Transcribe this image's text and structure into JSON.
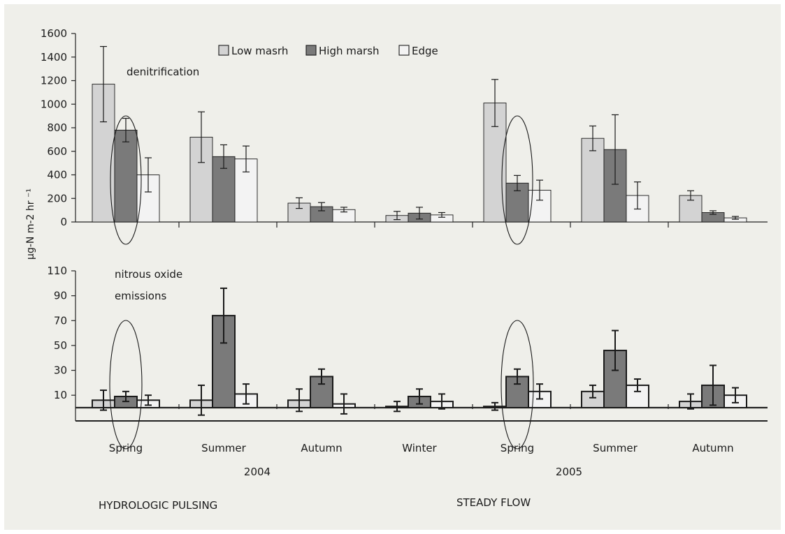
{
  "legend": {
    "items": [
      {
        "label": "Low masrh",
        "color": "#d3d3d3"
      },
      {
        "label": "High marsh",
        "color": "#7a7a7a"
      },
      {
        "label": "Edge",
        "color": "#f3f3f3"
      }
    ]
  },
  "y_axis_label": "µg-N m-2 hr ⁻¹",
  "seasons": [
    "Spring",
    "Summer",
    "Autumn",
    "Winter",
    "Spring",
    "Summer",
    "Autumn"
  ],
  "years": [
    "2004",
    "2005"
  ],
  "regimes": [
    "HYDROLOGIC PULSING",
    "STEADY FLOW"
  ],
  "chart_data": [
    {
      "type": "bar",
      "annotation": "denitrification",
      "categories": [
        "Spring",
        "Summer",
        "Autumn",
        "Winter",
        "Spring",
        "Summer",
        "Autumn"
      ],
      "ylim": [
        0,
        1600
      ],
      "yticks": [
        0,
        200,
        400,
        600,
        800,
        1000,
        1200,
        1400,
        1600
      ],
      "series": [
        {
          "name": "Low masrh",
          "values": [
            1170,
            720,
            160,
            55,
            1010,
            710,
            225
          ],
          "errors": [
            320,
            215,
            45,
            35,
            200,
            105,
            40
          ]
        },
        {
          "name": "High marsh",
          "values": [
            780,
            555,
            130,
            75,
            330,
            615,
            80
          ],
          "errors": [
            100,
            100,
            35,
            50,
            65,
            295,
            15
          ]
        },
        {
          "name": "Edge",
          "values": [
            400,
            535,
            105,
            60,
            270,
            225,
            35
          ],
          "errors": [
            145,
            110,
            20,
            20,
            85,
            115,
            12
          ]
        }
      ],
      "circled": [
        [
          0,
          1
        ],
        [
          4,
          1
        ]
      ]
    },
    {
      "type": "bar",
      "annotation_lines": [
        "nitrous oxide",
        "emissions"
      ],
      "categories": [
        "Spring",
        "Summer",
        "Autumn",
        "Winter",
        "Spring",
        "Summer",
        "Autumn"
      ],
      "ylim": [
        0,
        110
      ],
      "yticks": [
        10,
        30,
        50,
        70,
        90,
        110
      ],
      "series": [
        {
          "name": "Low masrh",
          "values": [
            6,
            6,
            6,
            1,
            1,
            13,
            5
          ],
          "errors": [
            8,
            12,
            9,
            4,
            3,
            5,
            6
          ]
        },
        {
          "name": "High marsh",
          "values": [
            9,
            74,
            25,
            9,
            25,
            46,
            18
          ],
          "errors": [
            4,
            22,
            6,
            6,
            6,
            16,
            16
          ]
        },
        {
          "name": "Edge",
          "values": [
            6,
            11,
            3,
            5,
            13,
            18,
            10
          ],
          "errors": [
            4,
            8,
            8,
            6,
            6,
            5,
            6
          ]
        }
      ],
      "circled": [
        [
          0,
          1
        ],
        [
          4,
          1
        ]
      ]
    }
  ]
}
